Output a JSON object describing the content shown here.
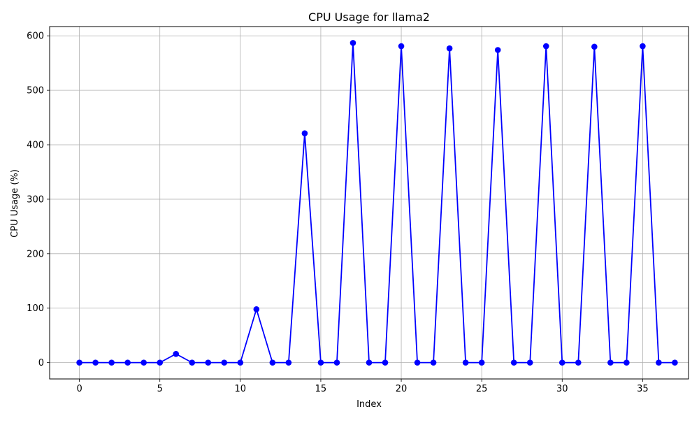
{
  "chart_data": {
    "type": "line",
    "title": "CPU Usage for llama2",
    "xlabel": "Index",
    "ylabel": "CPU Usage (%)",
    "xlim": [
      -1.85,
      37.85
    ],
    "ylim": [
      -30,
      617
    ],
    "xticks": [
      0,
      5,
      10,
      15,
      20,
      25,
      30,
      35
    ],
    "yticks": [
      0,
      100,
      200,
      300,
      400,
      500,
      600
    ],
    "grid": true,
    "legend": "none",
    "series": [
      {
        "color": "#0000ff",
        "marker": "circle",
        "x": [
          0,
          1,
          2,
          3,
          4,
          5,
          6,
          7,
          8,
          9,
          10,
          11,
          12,
          13,
          14,
          15,
          16,
          17,
          18,
          19,
          20,
          21,
          22,
          23,
          24,
          25,
          26,
          27,
          28,
          29,
          30,
          31,
          32,
          33,
          34,
          35,
          36,
          37
        ],
        "values": [
          0,
          0,
          0,
          0,
          0,
          0,
          16,
          0,
          0,
          0,
          0,
          98,
          0,
          0,
          421,
          0,
          0,
          587,
          0,
          0,
          581,
          0,
          0,
          577,
          0,
          0,
          574,
          0,
          0,
          581,
          0,
          0,
          580,
          0,
          0,
          581,
          0,
          0
        ]
      }
    ]
  }
}
